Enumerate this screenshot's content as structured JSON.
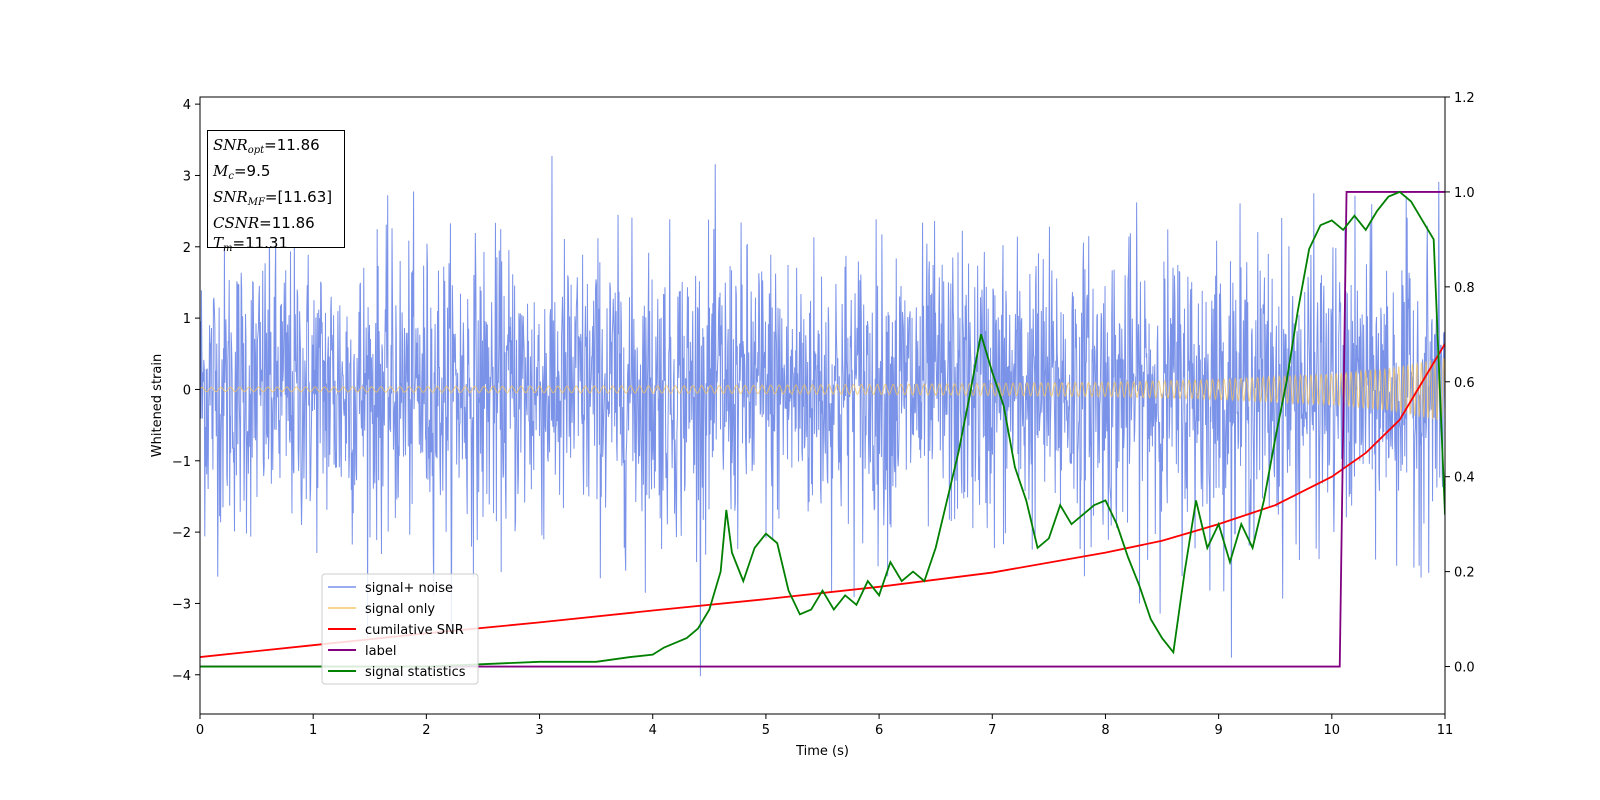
{
  "chart_data": {
    "type": "line",
    "xlabel": "Time (s)",
    "ylabel": "Whitened strain",
    "xlim": [
      0,
      11
    ],
    "ylim_left": [
      -4.55,
      4.1
    ],
    "ylim_right": [
      -0.1,
      1.2
    ],
    "x_ticks": [
      "0",
      "1",
      "2",
      "3",
      "4",
      "5",
      "6",
      "7",
      "8",
      "9",
      "10",
      "11"
    ],
    "y_ticks_left": [
      "−4",
      "−3",
      "−2",
      "−1",
      "0",
      "1",
      "2",
      "3",
      "4"
    ],
    "y_ticks_right": [
      "0.0",
      "0.2",
      "0.4",
      "0.6",
      "0.8",
      "1.0",
      "1.2"
    ],
    "grid": false,
    "legend_position": "lower-left",
    "colors": {
      "signal_noise": "#6b86e6",
      "signal_only": "#f5c35d",
      "cumulative_snr": "#ff0000",
      "label": "#800080",
      "signal_statistics": "#008000"
    },
    "series": [
      {
        "name": "signal+ noise",
        "axis": "left",
        "kind": "noise",
        "approx_range": [
          -4.2,
          3.7
        ]
      },
      {
        "name": "signal only",
        "axis": "left",
        "kind": "chirp",
        "x": [
          0,
          2,
          4,
          6,
          8,
          9,
          10,
          10.5,
          11
        ],
        "amplitude": [
          0.03,
          0.04,
          0.05,
          0.07,
          0.1,
          0.14,
          0.22,
          0.3,
          0.45
        ]
      },
      {
        "name": "cumilative SNR",
        "axis": "right",
        "x": [
          0,
          1,
          2,
          3,
          4,
          5,
          6,
          7,
          8,
          8.5,
          9,
          9.5,
          10,
          10.3,
          10.6,
          10.8,
          11
        ],
        "values": [
          0.02,
          0.045,
          0.07,
          0.093,
          0.118,
          0.142,
          0.168,
          0.198,
          0.24,
          0.265,
          0.3,
          0.34,
          0.4,
          0.45,
          0.52,
          0.6,
          0.68
        ]
      },
      {
        "name": "label",
        "axis": "right",
        "x": [
          0,
          10.07,
          10.13,
          11
        ],
        "values": [
          0,
          0,
          1,
          1
        ]
      },
      {
        "name": "signal statistics",
        "axis": "right",
        "x": [
          0,
          1,
          2,
          2.5,
          3,
          3.5,
          3.8,
          4.0,
          4.1,
          4.2,
          4.3,
          4.4,
          4.5,
          4.6,
          4.65,
          4.7,
          4.8,
          4.9,
          5.0,
          5.1,
          5.2,
          5.3,
          5.4,
          5.5,
          5.6,
          5.7,
          5.8,
          5.9,
          6.0,
          6.1,
          6.2,
          6.3,
          6.4,
          6.5,
          6.6,
          6.7,
          6.8,
          6.9,
          7.0,
          7.1,
          7.2,
          7.3,
          7.4,
          7.5,
          7.6,
          7.7,
          7.8,
          7.9,
          8.0,
          8.1,
          8.2,
          8.3,
          8.4,
          8.5,
          8.6,
          8.7,
          8.8,
          8.9,
          9.0,
          9.1,
          9.2,
          9.3,
          9.4,
          9.5,
          9.6,
          9.7,
          9.8,
          9.9,
          10.0,
          10.1,
          10.2,
          10.3,
          10.4,
          10.5,
          10.6,
          10.7,
          10.8,
          10.9,
          11.0
        ],
        "values": [
          0.0,
          0.0,
          0.0,
          0.005,
          0.01,
          0.01,
          0.02,
          0.025,
          0.04,
          0.05,
          0.06,
          0.08,
          0.12,
          0.2,
          0.33,
          0.24,
          0.18,
          0.25,
          0.28,
          0.26,
          0.16,
          0.11,
          0.12,
          0.16,
          0.12,
          0.15,
          0.13,
          0.18,
          0.15,
          0.22,
          0.18,
          0.2,
          0.18,
          0.25,
          0.35,
          0.45,
          0.57,
          0.7,
          0.62,
          0.55,
          0.42,
          0.35,
          0.25,
          0.27,
          0.34,
          0.3,
          0.32,
          0.34,
          0.35,
          0.3,
          0.23,
          0.17,
          0.1,
          0.06,
          0.03,
          0.2,
          0.35,
          0.25,
          0.3,
          0.22,
          0.3,
          0.25,
          0.35,
          0.48,
          0.6,
          0.75,
          0.88,
          0.93,
          0.94,
          0.92,
          0.95,
          0.92,
          0.96,
          0.99,
          1.0,
          0.98,
          0.94,
          0.9,
          0.32
        ]
      }
    ],
    "annotation": {
      "lines": [
        {
          "var": "SNR",
          "sub": "opt",
          "value": "=11.86"
        },
        {
          "var": "M",
          "sub": "c",
          "value": "=9.5"
        },
        {
          "var": "SNR",
          "sub": "MF",
          "value": "=[11.63]"
        },
        {
          "var": "CSNR",
          "sub": "",
          "value": "=11.86"
        },
        {
          "var": "T",
          "sub": "m",
          "value": "=11.31"
        }
      ]
    }
  }
}
